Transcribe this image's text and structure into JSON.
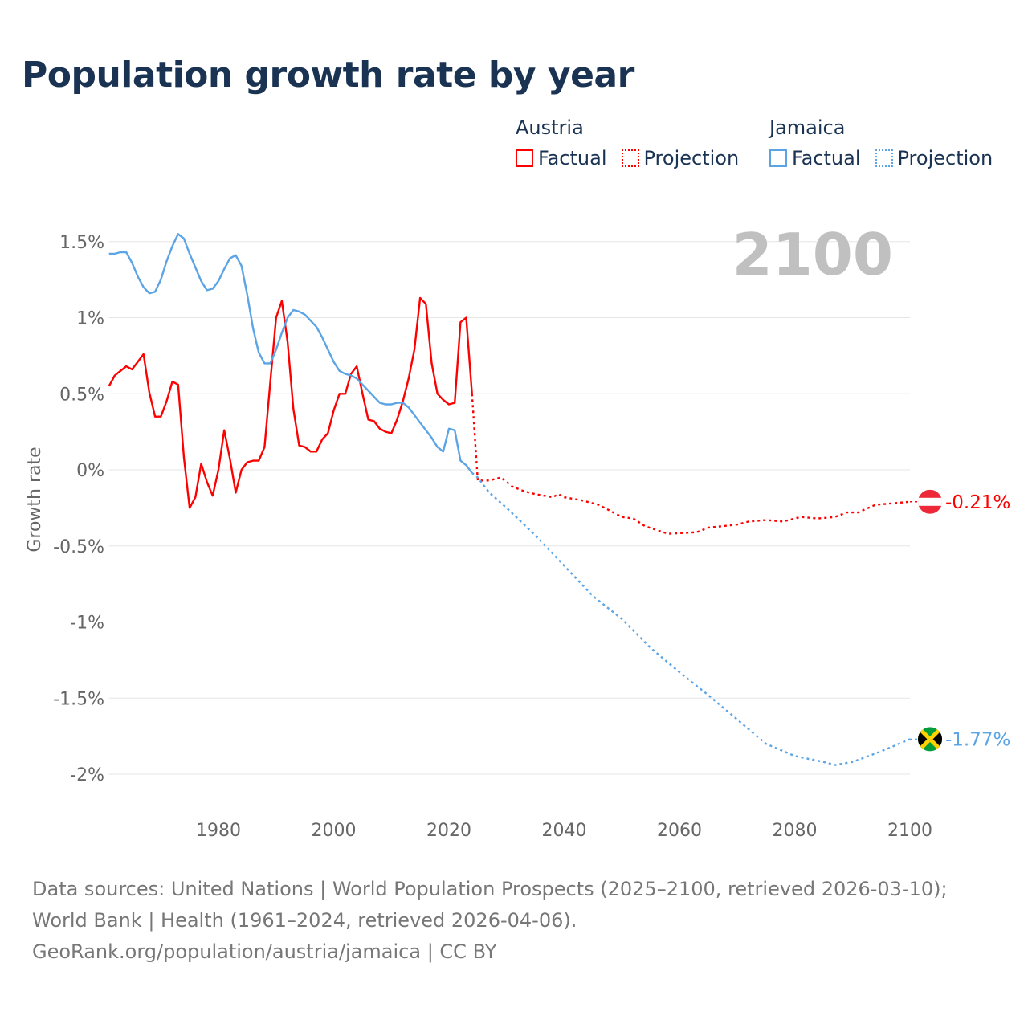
{
  "title": "Population growth rate by year",
  "legend": [
    {
      "country": "Austria",
      "factual": "Factual",
      "projection": "Projection",
      "color": "#ff0000"
    },
    {
      "country": "Jamaica",
      "factual": "Factual",
      "projection": "Projection",
      "color": "#5ba4e6"
    }
  ],
  "year_label": "2100",
  "footer": {
    "sources": "Data sources: United Nations | World Population Prospects (2025–2100, retrieved 2026-03-10); World Bank | Health (1961–2024, retrieved 2026-04-06).",
    "credit": "GeoRank.org/population/austria/jamaica | CC BY"
  },
  "chart_data": {
    "type": "line",
    "title": "Population growth rate by year",
    "xlabel": "",
    "ylabel": "Growth rate",
    "xlim": [
      1961,
      2100
    ],
    "ylim": [
      -2.25,
      1.6
    ],
    "x_ticks": [
      1980,
      2000,
      2020,
      2040,
      2060,
      2080,
      2100
    ],
    "y_ticks": [
      {
        "v": 1.5,
        "label": "1.5%"
      },
      {
        "v": 1,
        "label": "1%"
      },
      {
        "v": 0.5,
        "label": "0.5%"
      },
      {
        "v": 0,
        "label": "0%"
      },
      {
        "v": -0.5,
        "label": "-0.5%"
      },
      {
        "v": -1,
        "label": "-1%"
      },
      {
        "v": -1.5,
        "label": "-1.5%"
      },
      {
        "v": -2,
        "label": "-2%"
      }
    ],
    "grid": true,
    "series": [
      {
        "name": "Austria Factual",
        "color": "#ff0000",
        "dashed": false,
        "start_year": 1961,
        "values": [
          0.55,
          0.62,
          0.65,
          0.68,
          0.66,
          0.71,
          0.76,
          0.51,
          0.35,
          0.35,
          0.45,
          0.58,
          0.56,
          0.08,
          -0.25,
          -0.18,
          0.04,
          -0.08,
          -0.17,
          0.0,
          0.26,
          0.07,
          -0.15,
          0.0,
          0.05,
          0.06,
          0.06,
          0.15,
          0.58,
          1.0,
          1.11,
          0.84,
          0.4,
          0.16,
          0.15,
          0.12,
          0.12,
          0.2,
          0.24,
          0.39,
          0.5,
          0.5,
          0.63,
          0.68,
          0.5,
          0.33,
          0.32,
          0.27,
          0.25,
          0.24,
          0.33,
          0.45,
          0.6,
          0.79,
          1.13,
          1.09,
          0.7,
          0.5,
          0.46,
          0.43,
          0.44,
          0.97,
          1.0,
          0.5
        ]
      },
      {
        "name": "Austria Projection",
        "color": "#ff0000",
        "dashed": true,
        "points": [
          [
            2024,
            0.5
          ],
          [
            2025,
            -0.07
          ],
          [
            2027,
            -0.07
          ],
          [
            2029,
            -0.05
          ],
          [
            2031,
            -0.11
          ],
          [
            2033,
            -0.14
          ],
          [
            2035,
            -0.16
          ],
          [
            2038,
            -0.18
          ],
          [
            2039,
            -0.16
          ],
          [
            2040,
            -0.18
          ],
          [
            2043,
            -0.2
          ],
          [
            2046,
            -0.23
          ],
          [
            2050,
            -0.31
          ],
          [
            2052,
            -0.32
          ],
          [
            2054,
            -0.37
          ],
          [
            2058,
            -0.42
          ],
          [
            2063,
            -0.41
          ],
          [
            2065,
            -0.38
          ],
          [
            2070,
            -0.36
          ],
          [
            2072,
            -0.34
          ],
          [
            2075,
            -0.33
          ],
          [
            2078,
            -0.34
          ],
          [
            2081,
            -0.31
          ],
          [
            2084,
            -0.32
          ],
          [
            2087,
            -0.31
          ],
          [
            2089,
            -0.28
          ],
          [
            2091,
            -0.28
          ],
          [
            2094,
            -0.23
          ],
          [
            2097,
            -0.22
          ],
          [
            2100,
            -0.21
          ]
        ]
      },
      {
        "name": "Jamaica Factual",
        "color": "#5ba4e6",
        "dashed": false,
        "start_year": 1961,
        "values": [
          1.42,
          1.42,
          1.43,
          1.43,
          1.36,
          1.27,
          1.2,
          1.16,
          1.17,
          1.25,
          1.37,
          1.47,
          1.55,
          1.52,
          1.42,
          1.33,
          1.24,
          1.18,
          1.19,
          1.24,
          1.32,
          1.39,
          1.41,
          1.34,
          1.15,
          0.93,
          0.77,
          0.7,
          0.7,
          0.79,
          0.9,
          1.0,
          1.05,
          1.04,
          1.02,
          0.98,
          0.94,
          0.87,
          0.79,
          0.71,
          0.65,
          0.63,
          0.62,
          0.6,
          0.56,
          0.52,
          0.48,
          0.44,
          0.43,
          0.43,
          0.44,
          0.44,
          0.41,
          0.36,
          0.31,
          0.26,
          0.21,
          0.15,
          0.12,
          0.27,
          0.26,
          0.06,
          0.03,
          -0.02
        ]
      },
      {
        "name": "Jamaica Projection",
        "color": "#5ba4e6",
        "dashed": true,
        "points": [
          [
            2024,
            -0.02
          ],
          [
            2025,
            -0.05
          ],
          [
            2027,
            -0.15
          ],
          [
            2030,
            -0.25
          ],
          [
            2035,
            -0.43
          ],
          [
            2040,
            -0.63
          ],
          [
            2045,
            -0.83
          ],
          [
            2050,
            -0.98
          ],
          [
            2055,
            -1.17
          ],
          [
            2060,
            -1.33
          ],
          [
            2065,
            -1.48
          ],
          [
            2070,
            -1.64
          ],
          [
            2075,
            -1.8
          ],
          [
            2080,
            -1.88
          ],
          [
            2085,
            -1.92
          ],
          [
            2087,
            -1.94
          ],
          [
            2090,
            -1.92
          ],
          [
            2095,
            -1.85
          ],
          [
            2100,
            -1.77
          ]
        ]
      }
    ],
    "end_labels": [
      {
        "country": "Austria",
        "label": "-0.21%",
        "value": -0.21,
        "color": "#ff0000"
      },
      {
        "country": "Jamaica",
        "label": "-1.77%",
        "value": -1.77,
        "color": "#5ba4e6"
      }
    ]
  }
}
